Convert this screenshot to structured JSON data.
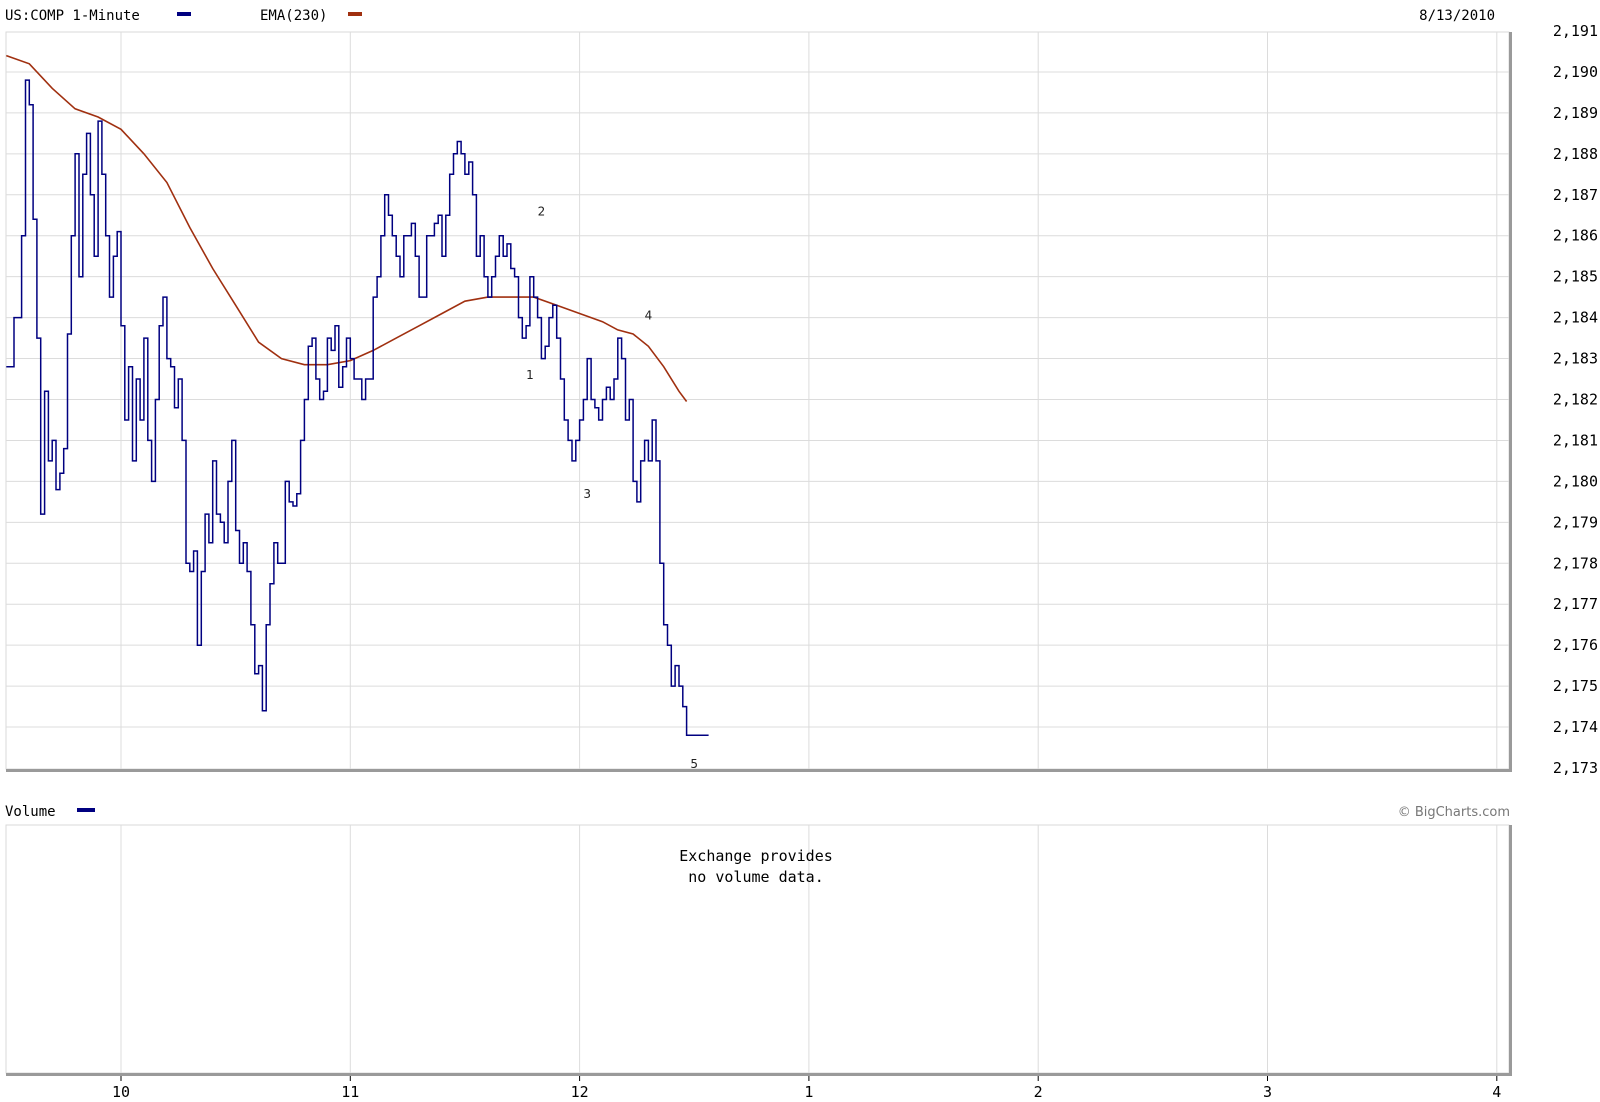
{
  "header": {
    "symbol_label": "US:COMP 1-Minute",
    "symbol_color": "#000080",
    "ema_label": "EMA(230)",
    "ema_color": "#A03010",
    "date": "8/13/2010"
  },
  "volume_panel": {
    "label": "Volume",
    "message_line1": "Exchange provides",
    "message_line2": "no volume data.",
    "copyright": "© BigCharts.com"
  },
  "chart_data": {
    "type": "line",
    "title": "",
    "xlabel": "",
    "ylabel": "",
    "x_ticks": [
      "10",
      "11",
      "12",
      "1",
      "2",
      "3",
      "4"
    ],
    "y_ticks": [
      "2,191",
      "2,190",
      "2,189",
      "2,188",
      "2,187",
      "2,186",
      "2,185",
      "2,184",
      "2,183",
      "2,182",
      "2,181",
      "2,180",
      "2,179",
      "2,178",
      "2,177",
      "2,176",
      "2,175",
      "2,174",
      "2,173"
    ],
    "ylim": [
      2173,
      2191
    ],
    "grid": true,
    "series": [
      {
        "name": "US:COMP 1-Minute",
        "color": "#000080",
        "x_unit": "minutes after 9:30",
        "points": [
          [
            0,
            2182.8
          ],
          [
            2,
            2184.0
          ],
          [
            4,
            2186.0
          ],
          [
            5,
            2189.8
          ],
          [
            6,
            2189.2
          ],
          [
            7,
            2186.4
          ],
          [
            8,
            2183.5
          ],
          [
            9,
            2179.2
          ],
          [
            10,
            2182.2
          ],
          [
            11,
            2180.5
          ],
          [
            12,
            2181.0
          ],
          [
            13,
            2179.8
          ],
          [
            14,
            2180.2
          ],
          [
            15,
            2180.8
          ],
          [
            16,
            2183.6
          ],
          [
            17,
            2186.0
          ],
          [
            18,
            2188.0
          ],
          [
            19,
            2185.0
          ],
          [
            20,
            2187.5
          ],
          [
            21,
            2188.5
          ],
          [
            22,
            2187.0
          ],
          [
            23,
            2185.5
          ],
          [
            24,
            2188.8
          ],
          [
            25,
            2187.5
          ],
          [
            26,
            2186.0
          ],
          [
            27,
            2184.5
          ],
          [
            28,
            2185.5
          ],
          [
            29,
            2186.1
          ],
          [
            30,
            2183.8
          ],
          [
            31,
            2181.5
          ],
          [
            32,
            2182.8
          ],
          [
            33,
            2180.5
          ],
          [
            34,
            2182.5
          ],
          [
            35,
            2181.5
          ],
          [
            36,
            2183.5
          ],
          [
            37,
            2181.0
          ],
          [
            38,
            2180.0
          ],
          [
            39,
            2182.0
          ],
          [
            40,
            2183.8
          ],
          [
            41,
            2184.5
          ],
          [
            42,
            2183.0
          ],
          [
            43,
            2182.8
          ],
          [
            44,
            2181.8
          ],
          [
            45,
            2182.5
          ],
          [
            46,
            2181.0
          ],
          [
            47,
            2178.0
          ],
          [
            48,
            2177.8
          ],
          [
            49,
            2178.3
          ],
          [
            50,
            2176.0
          ],
          [
            51,
            2177.8
          ],
          [
            52,
            2179.2
          ],
          [
            53,
            2178.5
          ],
          [
            54,
            2180.5
          ],
          [
            55,
            2179.2
          ],
          [
            56,
            2179.0
          ],
          [
            57,
            2178.5
          ],
          [
            58,
            2180.0
          ],
          [
            59,
            2181.0
          ],
          [
            60,
            2178.8
          ],
          [
            61,
            2178.0
          ],
          [
            62,
            2178.5
          ],
          [
            63,
            2177.8
          ],
          [
            64,
            2176.5
          ],
          [
            65,
            2175.3
          ],
          [
            66,
            2175.5
          ],
          [
            67,
            2174.4
          ],
          [
            68,
            2176.5
          ],
          [
            69,
            2177.5
          ],
          [
            70,
            2178.5
          ],
          [
            71,
            2178.0
          ],
          [
            72,
            2178.0
          ],
          [
            73,
            2180.0
          ],
          [
            74,
            2179.5
          ],
          [
            75,
            2179.4
          ],
          [
            76,
            2179.7
          ],
          [
            77,
            2181.0
          ],
          [
            78,
            2182.0
          ],
          [
            79,
            2183.3
          ],
          [
            80,
            2183.5
          ],
          [
            81,
            2182.5
          ],
          [
            82,
            2182.0
          ],
          [
            83,
            2182.2
          ],
          [
            84,
            2183.5
          ],
          [
            85,
            2183.2
          ],
          [
            86,
            2183.8
          ],
          [
            87,
            2182.3
          ],
          [
            88,
            2182.8
          ],
          [
            89,
            2183.5
          ],
          [
            90,
            2183.0
          ],
          [
            91,
            2182.5
          ],
          [
            92,
            2182.5
          ],
          [
            93,
            2182.0
          ],
          [
            94,
            2182.5
          ],
          [
            95,
            2182.5
          ],
          [
            96,
            2184.5
          ],
          [
            97,
            2185.0
          ],
          [
            98,
            2186.0
          ],
          [
            99,
            2187.0
          ],
          [
            100,
            2186.5
          ],
          [
            101,
            2186.0
          ],
          [
            102,
            2185.5
          ],
          [
            103,
            2185.0
          ],
          [
            104,
            2186.0
          ],
          [
            105,
            2186.0
          ],
          [
            106,
            2186.3
          ],
          [
            107,
            2185.5
          ],
          [
            108,
            2184.5
          ],
          [
            109,
            2184.5
          ],
          [
            110,
            2186.0
          ],
          [
            111,
            2186.0
          ],
          [
            112,
            2186.3
          ],
          [
            113,
            2186.5
          ],
          [
            114,
            2185.5
          ],
          [
            115,
            2186.5
          ],
          [
            116,
            2187.5
          ],
          [
            117,
            2188.0
          ],
          [
            118,
            2188.3
          ],
          [
            119,
            2188.0
          ],
          [
            120,
            2187.5
          ],
          [
            121,
            2187.8
          ],
          [
            122,
            2187.0
          ],
          [
            123,
            2185.5
          ],
          [
            124,
            2186.0
          ],
          [
            125,
            2185.0
          ],
          [
            126,
            2184.5
          ],
          [
            127,
            2185.0
          ],
          [
            128,
            2185.5
          ],
          [
            129,
            2186.0
          ],
          [
            130,
            2185.5
          ],
          [
            131,
            2185.8
          ],
          [
            132,
            2185.2
          ],
          [
            133,
            2185.0
          ],
          [
            134,
            2184.0
          ],
          [
            135,
            2183.5
          ],
          [
            136,
            2183.8
          ],
          [
            137,
            2185.0
          ],
          [
            138,
            2184.5
          ],
          [
            139,
            2184.0
          ],
          [
            140,
            2183.0
          ],
          [
            141,
            2183.3
          ],
          [
            142,
            2184.0
          ],
          [
            143,
            2184.3
          ],
          [
            144,
            2183.5
          ],
          [
            145,
            2182.5
          ],
          [
            146,
            2181.5
          ],
          [
            147,
            2181.0
          ],
          [
            148,
            2180.5
          ],
          [
            149,
            2181.0
          ],
          [
            150,
            2181.5
          ],
          [
            151,
            2182.0
          ],
          [
            152,
            2183.0
          ],
          [
            153,
            2182.0
          ],
          [
            154,
            2181.8
          ],
          [
            155,
            2181.5
          ],
          [
            156,
            2182.0
          ],
          [
            157,
            2182.3
          ],
          [
            158,
            2182.0
          ],
          [
            159,
            2182.5
          ],
          [
            160,
            2183.5
          ],
          [
            161,
            2183.0
          ],
          [
            162,
            2181.5
          ],
          [
            163,
            2182.0
          ],
          [
            164,
            2180.0
          ],
          [
            165,
            2179.5
          ],
          [
            166,
            2180.5
          ],
          [
            167,
            2181.0
          ],
          [
            168,
            2180.5
          ],
          [
            169,
            2181.5
          ],
          [
            170,
            2180.5
          ],
          [
            171,
            2178.0
          ],
          [
            172,
            2176.5
          ],
          [
            173,
            2176.0
          ],
          [
            174,
            2175.0
          ],
          [
            175,
            2175.5
          ],
          [
            176,
            2175.0
          ],
          [
            177,
            2174.5
          ],
          [
            178,
            2173.8
          ]
        ]
      },
      {
        "name": "EMA(230)",
        "color": "#A03010",
        "x_unit": "minutes after 9:30",
        "points": [
          [
            0,
            2190.4
          ],
          [
            6,
            2190.2
          ],
          [
            12,
            2189.6
          ],
          [
            18,
            2189.1
          ],
          [
            24,
            2188.9
          ],
          [
            30,
            2188.6
          ],
          [
            36,
            2188.0
          ],
          [
            42,
            2187.3
          ],
          [
            48,
            2186.2
          ],
          [
            54,
            2185.2
          ],
          [
            60,
            2184.3
          ],
          [
            66,
            2183.4
          ],
          [
            72,
            2183.0
          ],
          [
            78,
            2182.85
          ],
          [
            84,
            2182.85
          ],
          [
            90,
            2182.95
          ],
          [
            96,
            2183.2
          ],
          [
            102,
            2183.5
          ],
          [
            108,
            2183.8
          ],
          [
            114,
            2184.1
          ],
          [
            120,
            2184.4
          ],
          [
            126,
            2184.5
          ],
          [
            132,
            2184.5
          ],
          [
            138,
            2184.5
          ],
          [
            144,
            2184.3
          ],
          [
            150,
            2184.1
          ],
          [
            156,
            2183.9
          ],
          [
            160,
            2183.7
          ],
          [
            164,
            2183.6
          ],
          [
            168,
            2183.3
          ],
          [
            172,
            2182.8
          ],
          [
            176,
            2182.2
          ],
          [
            178,
            2181.95
          ]
        ]
      }
    ],
    "annotations": [
      {
        "text": "1",
        "x": 137,
        "y": 2182.5
      },
      {
        "text": "2",
        "x": 140,
        "y": 2186.5
      },
      {
        "text": "3",
        "x": 152,
        "y": 2179.6
      },
      {
        "text": "4",
        "x": 168,
        "y": 2183.95
      },
      {
        "text": "5",
        "x": 180,
        "y": 2173.0
      }
    ]
  }
}
